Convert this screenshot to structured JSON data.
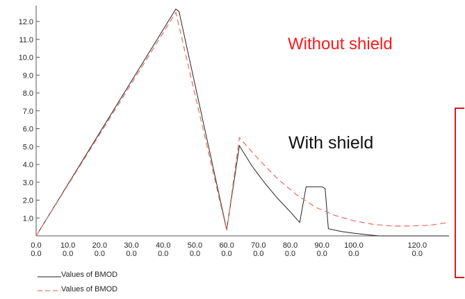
{
  "chart_data": {
    "type": "line",
    "xlim": [
      0,
      130
    ],
    "ylim": [
      0,
      12.7
    ],
    "x_ticks": [
      {
        "value": 0,
        "label1": "0.0",
        "label2": "0.0"
      },
      {
        "value": 10,
        "label1": "10.0",
        "label2": "0.0"
      },
      {
        "value": 20,
        "label1": "20.0",
        "label2": "0.0"
      },
      {
        "value": 30,
        "label1": "30.0",
        "label2": "0.0"
      },
      {
        "value": 40,
        "label1": "40.0",
        "label2": "0.0"
      },
      {
        "value": 50,
        "label1": "50.0",
        "label2": "0.0"
      },
      {
        "value": 60,
        "label1": "60.0",
        "label2": "0.0"
      },
      {
        "value": 70,
        "label1": "70.0",
        "label2": "0.0"
      },
      {
        "value": 80,
        "label1": "80.0",
        "label2": "0.0"
      },
      {
        "value": 90,
        "label1": "90.0",
        "label2": "0.0"
      },
      {
        "value": 100,
        "label1": "100.0",
        "label2": "0.0"
      },
      {
        "value": 120,
        "label1": "120.0",
        "label2": "0.0"
      }
    ],
    "y_ticks": [
      "1.0",
      "2.0",
      "3.0",
      "4.0",
      "5.0",
      "6.0",
      "7.0",
      "8.0",
      "9.0",
      "10.0",
      "11.0",
      "12.0"
    ],
    "series": [
      {
        "name": "Values of BMOD",
        "color": "#222222",
        "dash": "solid",
        "points": [
          [
            0,
            0
          ],
          [
            44,
            12.7
          ],
          [
            45,
            12.55
          ],
          [
            60,
            0.35
          ],
          [
            64,
            5.05
          ],
          [
            68,
            3.9
          ],
          [
            72,
            2.95
          ],
          [
            76,
            2.1
          ],
          [
            80,
            1.35
          ],
          [
            83,
            0.75
          ],
          [
            85,
            2.75
          ],
          [
            90,
            2.75
          ],
          [
            91,
            2.65
          ],
          [
            92,
            0.4
          ],
          [
            96,
            0.25
          ],
          [
            100,
            0.15
          ],
          [
            105,
            0.05
          ],
          [
            108,
            0
          ],
          [
            130,
            0
          ]
        ]
      },
      {
        "name": "Values of BMOD",
        "color": "#e8736e",
        "dash": "dashed",
        "points": [
          [
            0,
            0
          ],
          [
            44,
            12.5
          ],
          [
            60,
            0.3
          ],
          [
            64,
            5.5
          ],
          [
            70,
            4.3
          ],
          [
            76,
            3.2
          ],
          [
            82,
            2.3
          ],
          [
            88,
            1.6
          ],
          [
            94,
            1.15
          ],
          [
            100,
            0.85
          ],
          [
            106,
            0.65
          ],
          [
            112,
            0.55
          ],
          [
            118,
            0.55
          ],
          [
            124,
            0.6
          ],
          [
            130,
            0.75
          ]
        ]
      }
    ]
  },
  "annotations": {
    "without_shield": "Without shield",
    "with_shield": "With shield",
    "without_color": "#ff1a1a",
    "box_color": "#d81b1b"
  },
  "legend": {
    "items": [
      {
        "label": "Values of BMOD",
        "color": "#222222",
        "dash": "solid"
      },
      {
        "label": "Values of BMOD",
        "color": "#e8736e",
        "dash": "dashed"
      }
    ]
  }
}
